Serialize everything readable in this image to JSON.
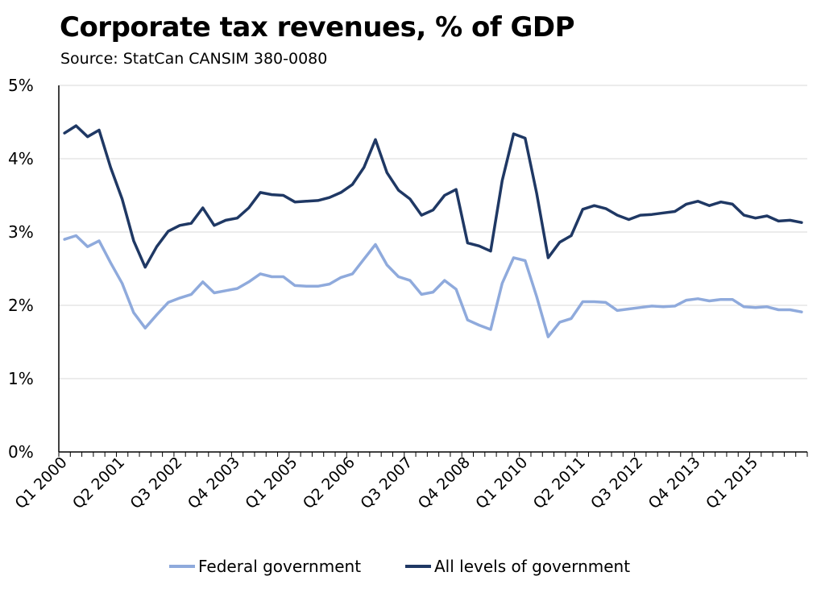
{
  "chart_data": {
    "type": "line",
    "title": "Corporate tax revenues, % of GDP",
    "subtitle": "Source: StatCan CANSIM 380-0080",
    "xlabel": "",
    "ylabel": "",
    "ylim": [
      0,
      5
    ],
    "y_ticks": [
      "0%",
      "1%",
      "2%",
      "3%",
      "4%",
      "5%"
    ],
    "grid": true,
    "legend_position": "bottom",
    "x_tick_labels": [
      "Q1 2000",
      "Q2 2001",
      "Q3 2002",
      "Q4 2003",
      "Q1 2005",
      "Q2 2006",
      "Q3 2007",
      "Q4 2008",
      "Q1 2010",
      "Q2 2011",
      "Q3 2012",
      "Q4 2013",
      "Q1 2015"
    ],
    "x_tick_label_every": 5,
    "x_count": 65,
    "series": [
      {
        "name": "Federal government",
        "color": "#8faadc",
        "values": [
          2.9,
          2.95,
          2.8,
          2.88,
          2.58,
          2.3,
          1.9,
          1.69,
          1.87,
          2.04,
          2.1,
          2.15,
          2.32,
          2.17,
          2.2,
          2.23,
          2.32,
          2.43,
          2.39,
          2.39,
          2.27,
          2.26,
          2.26,
          2.29,
          2.38,
          2.43,
          2.63,
          2.83,
          2.55,
          2.39,
          2.34,
          2.15,
          2.18,
          2.34,
          2.22,
          1.8,
          1.73,
          1.67,
          2.3,
          2.65,
          2.61,
          2.12,
          1.57,
          1.77,
          1.82,
          2.05,
          2.05,
          2.04,
          1.93,
          1.95,
          1.97,
          1.99,
          1.98,
          1.99,
          2.07,
          2.09,
          2.06,
          2.08,
          2.08,
          1.98,
          1.97,
          1.98,
          1.94,
          1.94,
          1.91
        ]
      },
      {
        "name": "All levels of government",
        "color": "#1f3864",
        "values": [
          4.35,
          4.45,
          4.3,
          4.39,
          3.88,
          3.45,
          2.88,
          2.52,
          2.8,
          3.01,
          3.09,
          3.12,
          3.33,
          3.09,
          3.16,
          3.19,
          3.33,
          3.54,
          3.51,
          3.5,
          3.41,
          3.42,
          3.43,
          3.47,
          3.54,
          3.65,
          3.88,
          4.26,
          3.81,
          3.57,
          3.45,
          3.23,
          3.3,
          3.5,
          3.58,
          2.85,
          2.81,
          2.74,
          3.7,
          4.34,
          4.28,
          3.53,
          2.65,
          2.86,
          2.95,
          3.31,
          3.36,
          3.32,
          3.23,
          3.17,
          3.23,
          3.24,
          3.26,
          3.28,
          3.38,
          3.42,
          3.36,
          3.41,
          3.38,
          3.23,
          3.19,
          3.22,
          3.15,
          3.16,
          3.13
        ]
      }
    ]
  }
}
